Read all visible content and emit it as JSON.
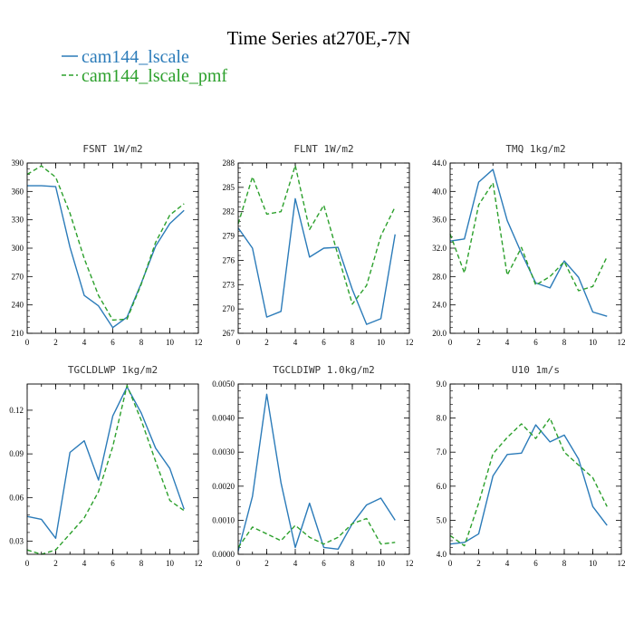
{
  "figure": {
    "title": "Time Series at270E,-7N"
  },
  "legend": [
    {
      "label": "cam144_lscale",
      "color": "#2b7bb9",
      "dash": "solid"
    },
    {
      "label": "cam144_lscale_pmf",
      "color": "#2ca02c",
      "dash": "dashed"
    }
  ],
  "chart_data": [
    {
      "type": "line",
      "title": "FSNT   1W/m2",
      "xlim": [
        0,
        12
      ],
      "xticks": [
        "0",
        "2",
        "4",
        "6",
        "8",
        "10",
        "12"
      ],
      "ylim": [
        210,
        390
      ],
      "yticks": [
        210,
        240,
        270,
        300,
        330,
        360,
        390
      ],
      "ytick_labels": [
        "210",
        "240",
        "270",
        "300",
        "330",
        "360",
        "390"
      ],
      "x": [
        0,
        1,
        2,
        3,
        4,
        5,
        6,
        7,
        8,
        9,
        10,
        11
      ],
      "series": [
        {
          "name": "cam144_lscale",
          "values": [
            366,
            366,
            365,
            301,
            250,
            239,
            216,
            227,
            263,
            302,
            326,
            340
          ]
        },
        {
          "name": "cam144_lscale_pmf",
          "values": [
            378,
            387,
            375,
            337,
            289,
            250,
            224,
            225,
            262,
            306,
            335,
            347
          ]
        }
      ]
    },
    {
      "type": "line",
      "title": "FLNT   1W/m2",
      "xlim": [
        0,
        12
      ],
      "xticks": [
        "0",
        "2",
        "4",
        "6",
        "8",
        "10",
        "12"
      ],
      "ylim": [
        267,
        288
      ],
      "yticks": [
        267,
        270,
        273,
        276,
        279,
        282,
        285,
        288
      ],
      "ytick_labels": [
        "267",
        "270",
        "273",
        "276",
        "279",
        "282",
        "285",
        "288"
      ],
      "x": [
        0,
        1,
        2,
        3,
        4,
        5,
        6,
        7,
        8,
        9,
        10,
        11
      ],
      "series": [
        {
          "name": "cam144_lscale",
          "values": [
            280.0,
            277.5,
            269.0,
            269.7,
            283.6,
            276.4,
            277.5,
            277.6,
            272.4,
            268.1,
            268.8,
            279.2
          ]
        },
        {
          "name": "cam144_lscale_pmf",
          "values": [
            280.5,
            286.3,
            281.7,
            282.0,
            287.7,
            279.8,
            282.8,
            276.6,
            270.6,
            272.9,
            279.0,
            282.6
          ]
        }
      ]
    },
    {
      "type": "line",
      "title": "TMQ   1kg/m2",
      "xlim": [
        0,
        12
      ],
      "xticks": [
        "0",
        "2",
        "4",
        "6",
        "8",
        "10",
        "12"
      ],
      "ylim": [
        20,
        44
      ],
      "yticks": [
        20,
        24,
        28,
        32,
        36,
        40,
        44
      ],
      "ytick_labels": [
        "20.0",
        "24.0",
        "28.0",
        "32.0",
        "36.0",
        "40.0",
        "44.0"
      ],
      "x": [
        0,
        1,
        2,
        3,
        4,
        5,
        6,
        7,
        8,
        9,
        10,
        11
      ],
      "series": [
        {
          "name": "cam144_lscale",
          "values": [
            33.0,
            33.3,
            41.3,
            43.1,
            35.9,
            31.3,
            27.1,
            26.4,
            30.2,
            27.9,
            23.0,
            22.4
          ]
        },
        {
          "name": "cam144_lscale_pmf",
          "values": [
            34.0,
            28.5,
            38.1,
            41.2,
            28.2,
            32.1,
            26.8,
            28.0,
            30.1,
            26.0,
            26.6,
            30.8
          ]
        }
      ]
    },
    {
      "type": "line",
      "title": "TGCLDLWP   1kg/m2",
      "xlim": [
        0,
        12
      ],
      "xticks": [
        "0",
        "2",
        "4",
        "6",
        "8",
        "10",
        "12"
      ],
      "ylim": [
        0.021,
        0.138
      ],
      "yticks": [
        0.03,
        0.06,
        0.09,
        0.12
      ],
      "ytick_labels": [
        "0.03",
        "0.06",
        "0.09",
        "0.12"
      ],
      "x": [
        0,
        1,
        2,
        3,
        4,
        5,
        6,
        7,
        8,
        9,
        10,
        11
      ],
      "series": [
        {
          "name": "cam144_lscale",
          "values": [
            0.047,
            0.045,
            0.032,
            0.091,
            0.099,
            0.072,
            0.116,
            0.136,
            0.118,
            0.094,
            0.08,
            0.052
          ]
        },
        {
          "name": "cam144_lscale_pmf",
          "values": [
            0.024,
            0.021,
            0.024,
            0.035,
            0.046,
            0.064,
            0.095,
            0.137,
            0.113,
            0.085,
            0.058,
            0.051
          ]
        }
      ]
    },
    {
      "type": "line",
      "title": "TGCLDIWP   1.0kg/m2",
      "xlim": [
        0,
        12
      ],
      "xticks": [
        "0",
        "2",
        "4",
        "6",
        "8",
        "10",
        "12"
      ],
      "ylim": [
        0,
        0.005
      ],
      "yticks": [
        0,
        0.001,
        0.002,
        0.003,
        0.004,
        0.005
      ],
      "ytick_labels": [
        "0.0000",
        "0.0010",
        "0.0020",
        "0.0030",
        "0.0040",
        "0.0050"
      ],
      "x": [
        0,
        1,
        2,
        3,
        4,
        5,
        6,
        7,
        8,
        9,
        10,
        11
      ],
      "series": [
        {
          "name": "cam144_lscale",
          "values": [
            0.0001,
            0.0017,
            0.0047,
            0.0021,
            0.0002,
            0.0015,
            0.0002,
            0.00015,
            0.0009,
            0.00145,
            0.00165,
            0.001
          ]
        },
        {
          "name": "cam144_lscale_pmf",
          "values": [
            0.0002,
            0.0008,
            0.0006,
            0.0004,
            0.00085,
            0.0005,
            0.0003,
            0.0005,
            0.0009,
            0.00105,
            0.0003,
            0.00035
          ]
        }
      ]
    },
    {
      "type": "line",
      "title": "U10   1m/s",
      "xlim": [
        0,
        12
      ],
      "xticks": [
        "0",
        "2",
        "4",
        "6",
        "8",
        "10",
        "12"
      ],
      "ylim": [
        4,
        9
      ],
      "yticks": [
        4,
        5,
        6,
        7,
        8,
        9
      ],
      "ytick_labels": [
        "4.0",
        "5.0",
        "6.0",
        "7.0",
        "8.0",
        "9.0"
      ],
      "x": [
        0,
        1,
        2,
        3,
        4,
        5,
        6,
        7,
        8,
        9,
        10,
        11
      ],
      "series": [
        {
          "name": "cam144_lscale",
          "values": [
            4.3,
            4.35,
            4.6,
            6.3,
            6.93,
            6.97,
            7.8,
            7.3,
            7.5,
            6.8,
            5.4,
            4.85
          ]
        },
        {
          "name": "cam144_lscale_pmf",
          "values": [
            4.55,
            4.25,
            5.5,
            6.95,
            7.43,
            7.83,
            7.4,
            8.0,
            7.0,
            6.62,
            6.25,
            5.4
          ]
        }
      ]
    }
  ]
}
